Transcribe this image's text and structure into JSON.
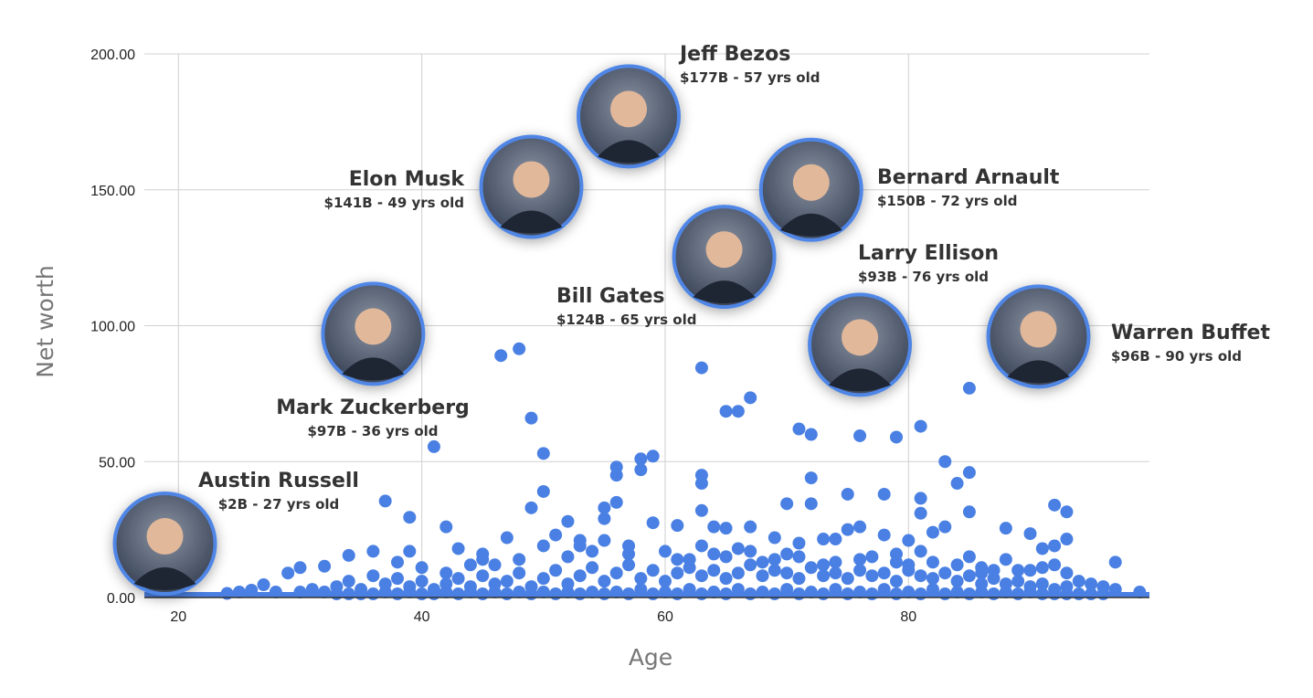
{
  "chart_data": {
    "type": "scatter",
    "title": "",
    "xlabel": "Age",
    "ylabel": "Net worth",
    "xlim": [
      17.2,
      99.8
    ],
    "ylim": [
      0,
      200
    ],
    "x_ticks": [
      "20",
      "40",
      "60",
      "80"
    ],
    "x_tick_values": [
      20,
      40,
      60,
      80
    ],
    "y_ticks": [
      "0.00",
      "50.00",
      "100.00",
      "150.00",
      "200.00"
    ],
    "y_tick_values": [
      0,
      50,
      100,
      150,
      200
    ],
    "grid": true,
    "legend": "none",
    "colors": {
      "points": "#4a80e3",
      "marker_border": "#4f86e6",
      "grid": "#d0d0d0",
      "label": "#333333",
      "axis_title": "#777777"
    },
    "highlighted": [
      {
        "name": "Jeff Bezos",
        "detail": "$177B - 57 yrs old",
        "age": 57,
        "net_worth": 177
      },
      {
        "name": "Elon Musk",
        "detail": "$141B - 49 yrs old",
        "age": 49,
        "net_worth": 141
      },
      {
        "name": "Bernard Arnault",
        "detail": "$150B - 72 yrs old",
        "age": 72,
        "net_worth": 150
      },
      {
        "name": "Bill Gates",
        "detail": "$124B - 65 yrs old",
        "age": 65,
        "net_worth": 124
      },
      {
        "name": "Larry Ellison",
        "detail": "$93B - 76 yrs old",
        "age": 76,
        "net_worth": 93
      },
      {
        "name": "Warren Buffet",
        "detail": "$96B - 90 yrs old",
        "age": 90,
        "net_worth": 96
      },
      {
        "name": "Mark Zuckerberg",
        "detail": "$97B - 36 yrs old",
        "age": 36,
        "net_worth": 97
      },
      {
        "name": "Austin Russell",
        "detail": "$2B - 27 yrs old",
        "age": 27,
        "net_worth": 2
      }
    ],
    "points": [
      [
        46.5,
        89
      ],
      [
        48,
        91.5
      ],
      [
        49,
        66
      ],
      [
        50,
        53
      ],
      [
        41,
        55.5
      ],
      [
        63,
        84.5
      ],
      [
        65,
        68.5
      ],
      [
        66,
        68.5
      ],
      [
        67,
        73.5
      ],
      [
        71,
        62
      ],
      [
        72,
        60
      ],
      [
        76,
        59.5
      ],
      [
        79,
        59
      ],
      [
        81,
        63
      ],
      [
        85,
        77
      ],
      [
        83,
        50
      ],
      [
        84,
        42
      ],
      [
        85,
        46
      ],
      [
        37,
        35.5
      ],
      [
        39,
        29.5
      ],
      [
        42,
        26
      ],
      [
        49,
        33
      ],
      [
        50,
        39
      ],
      [
        56,
        48
      ],
      [
        58,
        51
      ],
      [
        59,
        52
      ],
      [
        58,
        47
      ],
      [
        56,
        45
      ],
      [
        63,
        45
      ],
      [
        63,
        42
      ],
      [
        63,
        32
      ],
      [
        59,
        27.5
      ],
      [
        61,
        26.5
      ],
      [
        70,
        34.5
      ],
      [
        72,
        44
      ],
      [
        72,
        34.5
      ],
      [
        75,
        38
      ],
      [
        78,
        38
      ],
      [
        81,
        36.5
      ],
      [
        81,
        31
      ],
      [
        85,
        31.5
      ],
      [
        92,
        34
      ],
      [
        93,
        31.5
      ],
      [
        88,
        25.5
      ],
      [
        90,
        23.5
      ],
      [
        97,
        13
      ],
      [
        99,
        2
      ],
      [
        47,
        22
      ],
      [
        51,
        23
      ],
      [
        52,
        28
      ],
      [
        53,
        21
      ],
      [
        55,
        29
      ],
      [
        55,
        33
      ],
      [
        56,
        35
      ],
      [
        64,
        26
      ],
      [
        65,
        25.5
      ],
      [
        67,
        26
      ],
      [
        69,
        22
      ],
      [
        73,
        21.5
      ],
      [
        74,
        21.5
      ],
      [
        76,
        26
      ],
      [
        75,
        25
      ],
      [
        78,
        23
      ],
      [
        80,
        21
      ],
      [
        82,
        24
      ],
      [
        83,
        26
      ],
      [
        91,
        18
      ],
      [
        92,
        19
      ],
      [
        93,
        21.5
      ],
      [
        36,
        17
      ],
      [
        34,
        15.5
      ],
      [
        32,
        11.5
      ],
      [
        30,
        11
      ],
      [
        29,
        9
      ],
      [
        27,
        4.7
      ],
      [
        26,
        2.7
      ],
      [
        25,
        2
      ],
      [
        24,
        1.5
      ],
      [
        28,
        2
      ],
      [
        43,
        18
      ],
      [
        45,
        16
      ],
      [
        44,
        12
      ],
      [
        38,
        13
      ],
      [
        40,
        11
      ],
      [
        42,
        9
      ],
      [
        46,
        12
      ],
      [
        48,
        14
      ],
      [
        50,
        19
      ],
      [
        52,
        15
      ],
      [
        54,
        17
      ],
      [
        57,
        19
      ],
      [
        60,
        17
      ],
      [
        62,
        14
      ],
      [
        64,
        16
      ],
      [
        66,
        18
      ],
      [
        68,
        13
      ],
      [
        70,
        16
      ],
      [
        71,
        20
      ],
      [
        73,
        12
      ],
      [
        77,
        15
      ],
      [
        79,
        13
      ],
      [
        81,
        17
      ],
      [
        84,
        12
      ],
      [
        85,
        15
      ],
      [
        86,
        9
      ],
      [
        88,
        14
      ],
      [
        89,
        10
      ],
      [
        91,
        11
      ],
      [
        92,
        12
      ],
      [
        94,
        6
      ],
      [
        95,
        5
      ],
      [
        96,
        4
      ],
      [
        97,
        3
      ],
      [
        30,
        2
      ],
      [
        31,
        3
      ],
      [
        32,
        2
      ],
      [
        33,
        4
      ],
      [
        34,
        6
      ],
      [
        35,
        3
      ],
      [
        36,
        8
      ],
      [
        37,
        5
      ],
      [
        38,
        7
      ],
      [
        39,
        4
      ],
      [
        40,
        6
      ],
      [
        41,
        3
      ],
      [
        42,
        5
      ],
      [
        43,
        7
      ],
      [
        44,
        4
      ],
      [
        45,
        8
      ],
      [
        46,
        5
      ],
      [
        47,
        6
      ],
      [
        48,
        9
      ],
      [
        49,
        4
      ],
      [
        50,
        7
      ],
      [
        51,
        10
      ],
      [
        52,
        5
      ],
      [
        53,
        8
      ],
      [
        54,
        11
      ],
      [
        55,
        6
      ],
      [
        56,
        9
      ],
      [
        57,
        12
      ],
      [
        58,
        7
      ],
      [
        59,
        10
      ],
      [
        60,
        6
      ],
      [
        61,
        9
      ],
      [
        62,
        11
      ],
      [
        63,
        8
      ],
      [
        64,
        10
      ],
      [
        65,
        7
      ],
      [
        66,
        9
      ],
      [
        67,
        12
      ],
      [
        68,
        8
      ],
      [
        69,
        10
      ],
      [
        70,
        9
      ],
      [
        71,
        7
      ],
      [
        72,
        11
      ],
      [
        73,
        8
      ],
      [
        74,
        9
      ],
      [
        75,
        7
      ],
      [
        76,
        10
      ],
      [
        77,
        8
      ],
      [
        78,
        9
      ],
      [
        79,
        6
      ],
      [
        80,
        10
      ],
      [
        81,
        8
      ],
      [
        82,
        7
      ],
      [
        83,
        9
      ],
      [
        84,
        6
      ],
      [
        85,
        8
      ],
      [
        86,
        5
      ],
      [
        87,
        7
      ],
      [
        88,
        5
      ],
      [
        89,
        6
      ],
      [
        90,
        4
      ],
      [
        91,
        5
      ],
      [
        92,
        3
      ],
      [
        93,
        4
      ],
      [
        33,
        1
      ],
      [
        34,
        1
      ],
      [
        35,
        1
      ],
      [
        36,
        1
      ],
      [
        37,
        2
      ],
      [
        38,
        1
      ],
      [
        39,
        2
      ],
      [
        40,
        1
      ],
      [
        41,
        1
      ],
      [
        42,
        2
      ],
      [
        43,
        1
      ],
      [
        44,
        2
      ],
      [
        45,
        1
      ],
      [
        46,
        2
      ],
      [
        47,
        1
      ],
      [
        48,
        2
      ],
      [
        49,
        1
      ],
      [
        50,
        2
      ],
      [
        51,
        1
      ],
      [
        52,
        2
      ],
      [
        53,
        1
      ],
      [
        54,
        2
      ],
      [
        55,
        1
      ],
      [
        56,
        2
      ],
      [
        57,
        1
      ],
      [
        58,
        3
      ],
      [
        59,
        1
      ],
      [
        60,
        2
      ],
      [
        61,
        1
      ],
      [
        62,
        3
      ],
      [
        63,
        1
      ],
      [
        64,
        2
      ],
      [
        65,
        1
      ],
      [
        66,
        3
      ],
      [
        67,
        1
      ],
      [
        68,
        2
      ],
      [
        69,
        1
      ],
      [
        70,
        3
      ],
      [
        71,
        1
      ],
      [
        72,
        2
      ],
      [
        73,
        1
      ],
      [
        74,
        3
      ],
      [
        75,
        1
      ],
      [
        76,
        2
      ],
      [
        77,
        1
      ],
      [
        78,
        3
      ],
      [
        79,
        1
      ],
      [
        80,
        2
      ],
      [
        81,
        1
      ],
      [
        82,
        3
      ],
      [
        83,
        1
      ],
      [
        84,
        2
      ],
      [
        85,
        1
      ],
      [
        86,
        2
      ],
      [
        87,
        1
      ],
      [
        88,
        2
      ],
      [
        89,
        1
      ],
      [
        90,
        2
      ],
      [
        91,
        1
      ],
      [
        92,
        1
      ],
      [
        93,
        1
      ],
      [
        94,
        1
      ],
      [
        95,
        1
      ],
      [
        96,
        1
      ],
      [
        39,
        17
      ],
      [
        45,
        14
      ],
      [
        53,
        19
      ],
      [
        55,
        21
      ],
      [
        57,
        16
      ],
      [
        61,
        14
      ],
      [
        63,
        19
      ],
      [
        65,
        15
      ],
      [
        67,
        17
      ],
      [
        69,
        14
      ],
      [
        71,
        15
      ],
      [
        74,
        13
      ],
      [
        76,
        14
      ],
      [
        79,
        16
      ],
      [
        80,
        12
      ],
      [
        82,
        13
      ],
      [
        86,
        11
      ],
      [
        87,
        10
      ],
      [
        90,
        10
      ],
      [
        93,
        9
      ]
    ]
  }
}
